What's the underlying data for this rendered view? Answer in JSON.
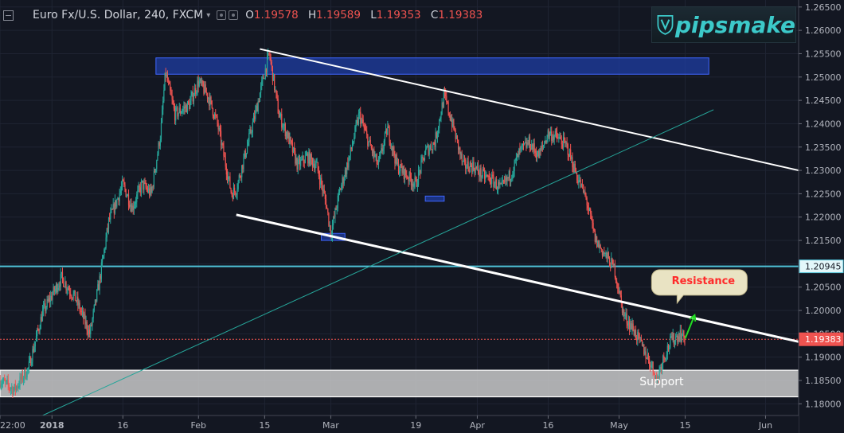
{
  "header": {
    "symbol": "Euro Fx/U.S. Dollar, 240, FXCM",
    "ohlc": [
      {
        "key": "O",
        "value": "1.19578"
      },
      {
        "key": "H",
        "value": "1.19589"
      },
      {
        "key": "L",
        "value": "1.19353"
      },
      {
        "key": "C",
        "value": "1.19383"
      }
    ]
  },
  "icons": {
    "collapse": "collapse-icon",
    "dropdown": "chevron-down-icon",
    "settings": "gear-icon",
    "visibility": "eye-icon"
  },
  "logo": {
    "text": "pipsmake",
    "icon": "shield-v-logo"
  },
  "colors": {
    "background": "#131722",
    "up_candle": "#26a69a",
    "down_candle": "#ef5350",
    "zone_fill": "#1e3fa8",
    "support_fill": "#d0d0d0",
    "channel_line": "#ffffff",
    "trend_line": "#26a69a",
    "horizontal_level": "#4fc3d9",
    "current_price": "#ef5350",
    "resistance_label_text": "#ff2a2a",
    "arrow": "#22dd22"
  },
  "chart_data": {
    "type": "candlestick",
    "timeframe": "240",
    "x_axis": {
      "ticks": [
        "22:00",
        "2018",
        "16",
        "Feb",
        "15",
        "Mar",
        "19",
        "Apr",
        "16",
        "May",
        "15",
        "Jun"
      ],
      "tick_dates": [
        "2017-12-21",
        "2018-01-01",
        "2018-01-16",
        "2018-02-01",
        "2018-02-15",
        "2018-03-01",
        "2018-03-19",
        "2018-04-01",
        "2018-04-16",
        "2018-05-01",
        "2018-05-15",
        "2018-06-01"
      ],
      "range": [
        "2017-12-21",
        "2018-06-08"
      ]
    },
    "y_axis": {
      "ticks": [
        "1.26500",
        "1.26000",
        "1.25500",
        "1.25000",
        "1.24500",
        "1.24000",
        "1.23500",
        "1.23000",
        "1.22500",
        "1.22000",
        "1.21500",
        "1.21000",
        "1.20500",
        "1.20000",
        "1.19500",
        "1.19000",
        "1.18500",
        "1.18000"
      ],
      "range": [
        1.1775,
        1.2665
      ],
      "position": "right"
    },
    "price_path": [
      [
        "2017-12-21",
        1.185
      ],
      [
        "2017-12-24",
        1.183
      ],
      [
        "2017-12-27",
        1.1875
      ],
      [
        "2017-12-30",
        1.1995
      ],
      [
        "2018-01-03",
        1.207
      ],
      [
        "2018-01-06",
        1.2025
      ],
      [
        "2018-01-09",
        1.195
      ],
      [
        "2018-01-11",
        1.206
      ],
      [
        "2018-01-13",
        1.219
      ],
      [
        "2018-01-16",
        1.227
      ],
      [
        "2018-01-18",
        1.222
      ],
      [
        "2018-01-20",
        1.227
      ],
      [
        "2018-01-22",
        1.225
      ],
      [
        "2018-01-24",
        1.238
      ],
      [
        "2018-01-25",
        1.251
      ],
      [
        "2018-01-27",
        1.242
      ],
      [
        "2018-01-30",
        1.244
      ],
      [
        "2018-02-01",
        1.249
      ],
      [
        "2018-02-03",
        1.246
      ],
      [
        "2018-02-05",
        1.24
      ],
      [
        "2018-02-07",
        1.23
      ],
      [
        "2018-02-08",
        1.225
      ],
      [
        "2018-02-09",
        1.226
      ],
      [
        "2018-02-11",
        1.234
      ],
      [
        "2018-02-13",
        1.242
      ],
      [
        "2018-02-15",
        1.251
      ],
      [
        "2018-02-16",
        1.255
      ],
      [
        "2018-02-18",
        1.242
      ],
      [
        "2018-02-20",
        1.237
      ],
      [
        "2018-02-22",
        1.231
      ],
      [
        "2018-02-24",
        1.233
      ],
      [
        "2018-02-26",
        1.231
      ],
      [
        "2018-02-28",
        1.223
      ],
      [
        "2018-03-01",
        1.2165
      ],
      [
        "2018-03-03",
        1.226
      ],
      [
        "2018-03-05",
        1.233
      ],
      [
        "2018-03-07",
        1.242
      ],
      [
        "2018-03-09",
        1.236
      ],
      [
        "2018-03-11",
        1.231
      ],
      [
        "2018-03-13",
        1.239
      ],
      [
        "2018-03-15",
        1.231
      ],
      [
        "2018-03-17",
        1.229
      ],
      [
        "2018-03-19",
        1.227
      ],
      [
        "2018-03-21",
        1.234
      ],
      [
        "2018-03-23",
        1.236
      ],
      [
        "2018-03-25",
        1.246
      ],
      [
        "2018-03-27",
        1.239
      ],
      [
        "2018-03-29",
        1.231
      ],
      [
        "2018-03-31",
        1.231
      ],
      [
        "2018-04-02",
        1.229
      ],
      [
        "2018-04-04",
        1.228
      ],
      [
        "2018-04-06",
        1.226
      ],
      [
        "2018-04-08",
        1.229
      ],
      [
        "2018-04-10",
        1.234
      ],
      [
        "2018-04-12",
        1.236
      ],
      [
        "2018-04-14",
        1.233
      ],
      [
        "2018-04-16",
        1.238
      ],
      [
        "2018-04-18",
        1.237
      ],
      [
        "2018-04-20",
        1.235
      ],
      [
        "2018-04-22",
        1.229
      ],
      [
        "2018-04-24",
        1.224
      ],
      [
        "2018-04-26",
        1.215
      ],
      [
        "2018-04-28",
        1.212
      ],
      [
        "2018-04-30",
        1.209
      ],
      [
        "2018-05-02",
        1.199
      ],
      [
        "2018-05-04",
        1.196
      ],
      [
        "2018-05-06",
        1.192
      ],
      [
        "2018-05-08",
        1.188
      ],
      [
        "2018-05-09",
        1.185
      ],
      [
        "2018-05-10",
        1.189
      ],
      [
        "2018-05-12",
        1.1935
      ],
      [
        "2018-05-14",
        1.195
      ],
      [
        "2018-05-15",
        1.1938
      ]
    ],
    "current_price": 1.19383,
    "horizontal_levels": [
      {
        "price": 1.20945,
        "label": "1.20945"
      },
      {
        "price": 1.19383,
        "label": "1.19383"
      }
    ],
    "zones": [
      {
        "x": [
          "2018-01-23",
          "2018-05-20"
        ],
        "y": [
          1.2506,
          1.2541
        ]
      },
      {
        "x": [
          "2018-03-21",
          "2018-03-25"
        ],
        "y": [
          1.2234,
          1.2245
        ]
      },
      {
        "x": [
          "2018-02-27",
          "2018-03-04"
        ],
        "y": [
          1.215,
          1.2165
        ]
      },
      {
        "x": [
          "2017-12-21",
          "2018-06-08"
        ],
        "y": [
          1.1815,
          1.1872
        ],
        "label": "Support"
      }
    ],
    "trendlines": [
      {
        "role": "channel-upper",
        "from": [
          "2018-02-14",
          1.256
        ],
        "to": [
          "2018-06-08",
          1.23
        ]
      },
      {
        "role": "channel-lower",
        "from": [
          "2018-02-09",
          1.2205
        ],
        "to": [
          "2018-06-08",
          1.1933
        ]
      },
      {
        "role": "rising-trend",
        "from": [
          "2017-12-30",
          1.1775
        ],
        "to": [
          "2018-05-21",
          1.243
        ]
      }
    ],
    "annotations": [
      {
        "text": "Resistance",
        "x": "2018-05-18",
        "y": 1.206
      },
      {
        "text": "Support",
        "x": "2018-05-10",
        "y": 1.1848
      },
      {
        "type": "arrow",
        "from": [
          "2018-05-15",
          1.194
        ],
        "to": [
          "2018-05-17",
          1.199
        ]
      }
    ],
    "grid": true,
    "legend": "top-left"
  }
}
